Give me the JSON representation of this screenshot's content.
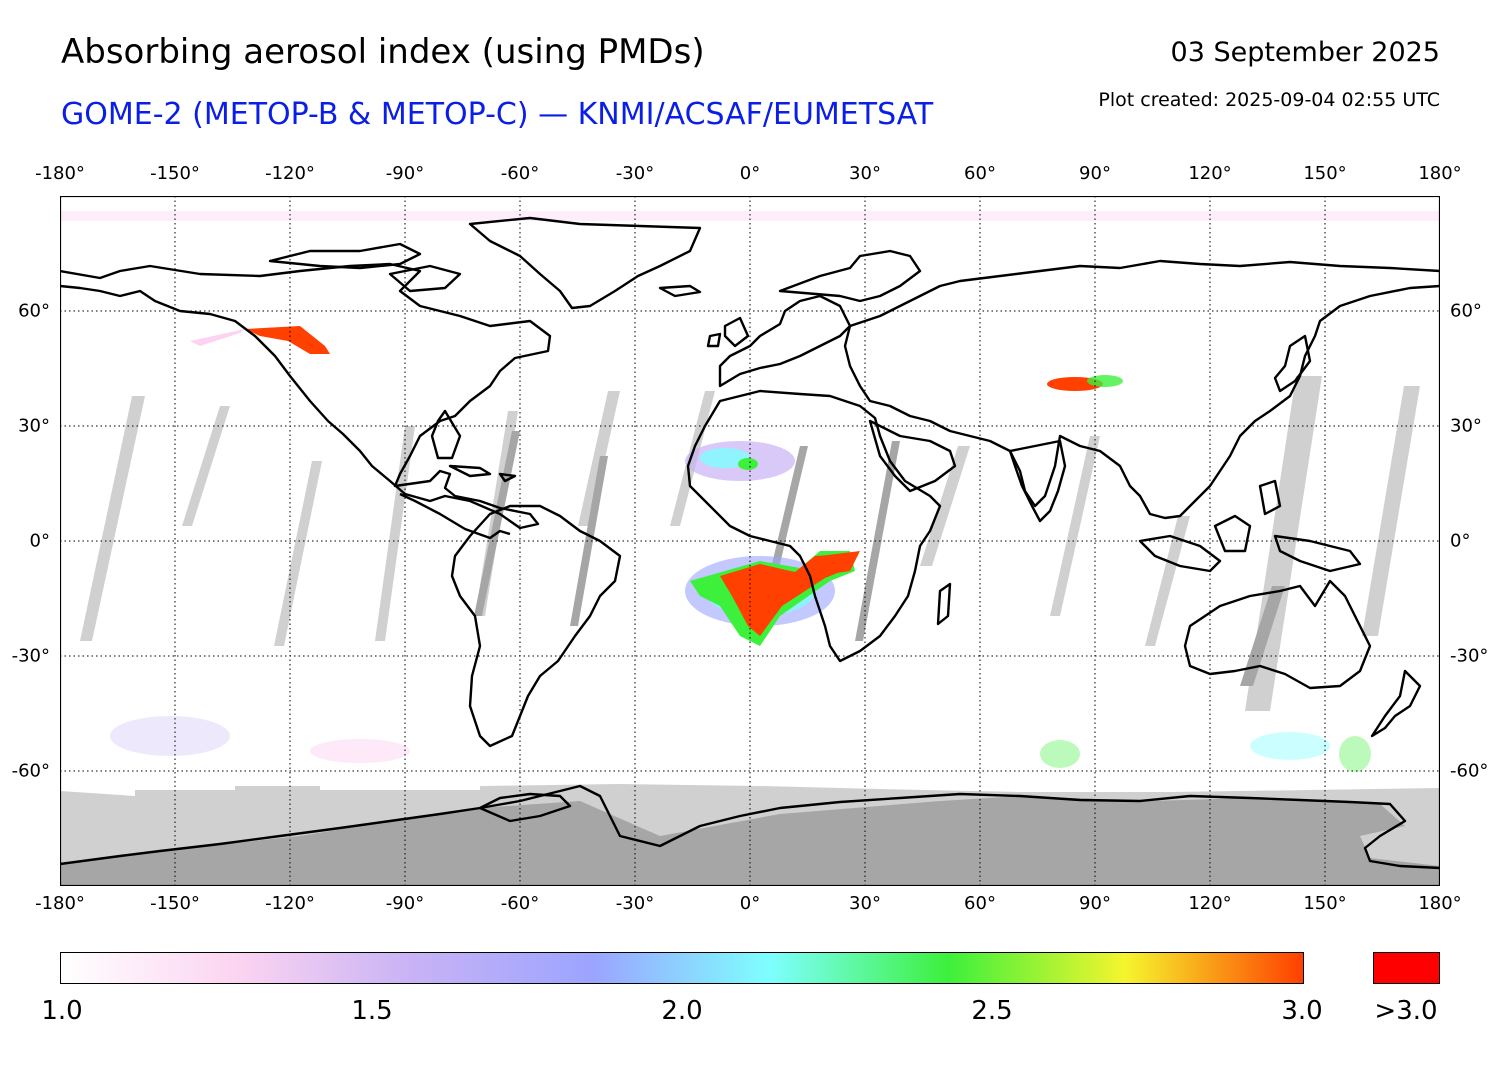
{
  "header": {
    "title": "Absorbing aerosol index (using PMDs)",
    "subtitle": "GOME-2 (METOP-B & METOP-C) — KNMI/ACSAF/EUMETSAT",
    "date": "03 September 2025",
    "plot_created": "Plot created: 2025-09-04 02:55 UTC"
  },
  "map": {
    "projection": "equirectangular",
    "lon_range": [
      -180,
      180
    ],
    "lat_range": [
      -90,
      90
    ],
    "gridlines": "dotted",
    "lon_ticks": [
      "-180°",
      "-150°",
      "-120°",
      "-90°",
      "-60°",
      "-30°",
      "0°",
      "30°",
      "60°",
      "90°",
      "120°",
      "150°",
      "180°"
    ],
    "lat_ticks": [
      "60°",
      "30°",
      "0°",
      "-30°",
      "-60°"
    ],
    "colors": {
      "coastline": "#000000",
      "no_data_light": "#d0d0d0",
      "no_data_dark": "#a6a6a6",
      "grid": "#000000"
    }
  },
  "colorbar": {
    "tick_labels": [
      "1.0",
      "1.5",
      "2.0",
      "2.5",
      "3.0"
    ],
    "over_label": ">3.0",
    "over_color": "#ff0000",
    "gradient_stops": [
      "#ffffff",
      "#fbd4f1",
      "#c7b2f5",
      "#9ba4ff",
      "#7effff",
      "#3cf03c",
      "#f5f52e",
      "#ff4000"
    ]
  }
}
